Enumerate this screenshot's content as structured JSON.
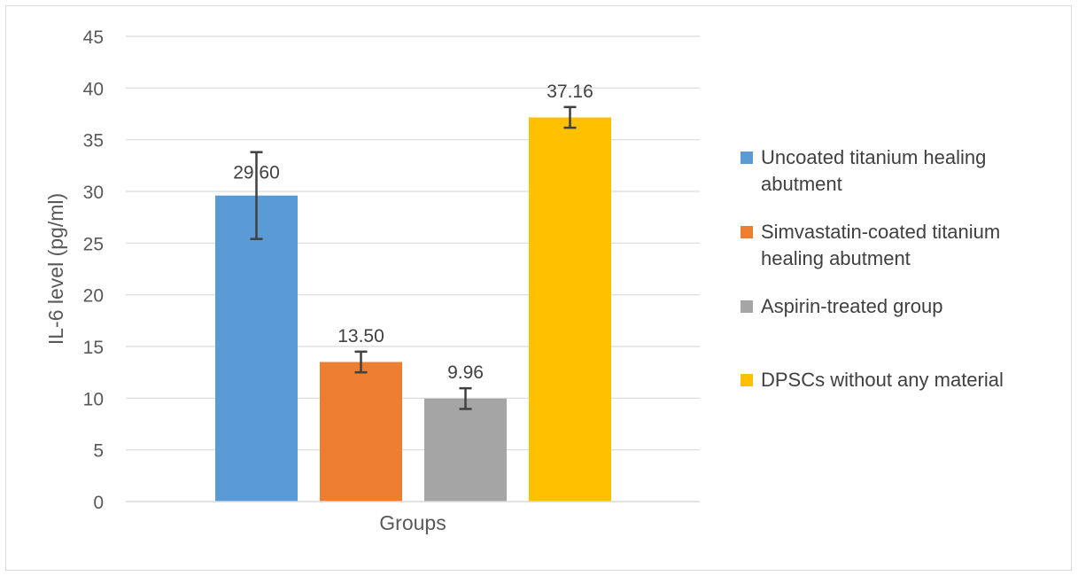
{
  "chart_data": {
    "type": "bar",
    "title": "",
    "xlabel": "Groups",
    "ylabel": "IL-6 level (pg/ml)",
    "ylim": [
      0,
      45
    ],
    "yticks": [
      0,
      5,
      10,
      15,
      20,
      25,
      30,
      35,
      40,
      45
    ],
    "ytick_labels": [
      "0",
      "5",
      "10",
      "15",
      "20",
      "25",
      "30",
      "35",
      "40",
      "45"
    ],
    "grid": true,
    "legend_position": "right",
    "categories": [
      "Groups"
    ],
    "series": [
      {
        "name": "Uncoated titanium healing abutment",
        "legend_lines": [
          "Uncoated titanium healing",
          "abutment"
        ],
        "value": 29.6,
        "label": "29.60",
        "error": 4.2,
        "color": "#5b9bd5"
      },
      {
        "name": "Simvastatin-coated titanium healing abutment",
        "legend_lines": [
          "Simvastatin-coated titanium",
          "healing abutment"
        ],
        "value": 13.5,
        "label": "13.50",
        "error": 1.0,
        "color": "#ed7d31"
      },
      {
        "name": "Aspirin-treated group",
        "legend_lines": [
          "Aspirin-treated group"
        ],
        "value": 9.96,
        "label": "9.96",
        "error": 1.0,
        "color": "#a5a5a5"
      },
      {
        "name": "DPSCs without any material",
        "legend_lines": [
          "DPSCs without any material"
        ],
        "value": 37.16,
        "label": "37.16",
        "error": 1.0,
        "color": "#ffc000"
      }
    ]
  }
}
